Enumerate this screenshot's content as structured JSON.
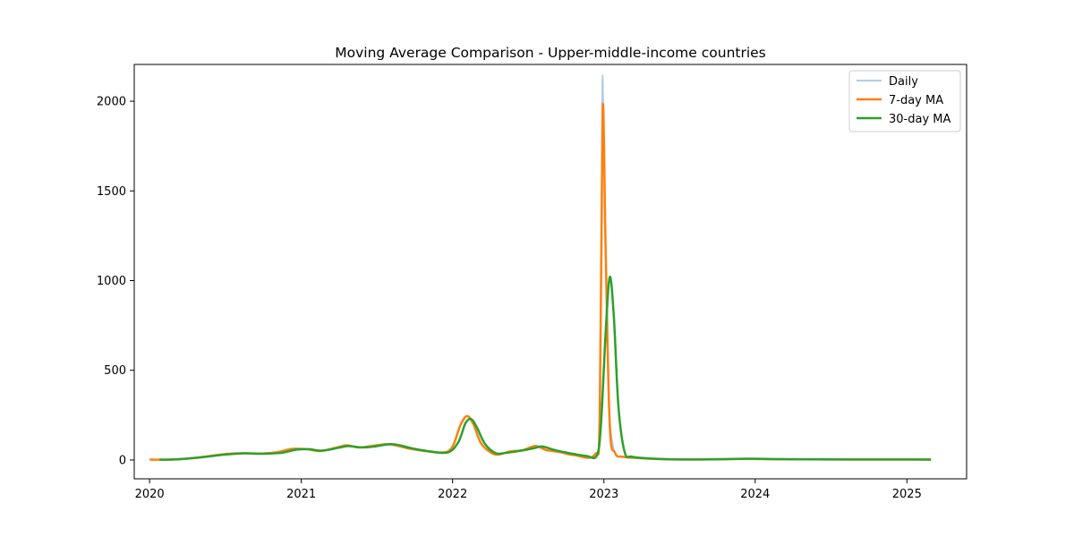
{
  "chart_data": {
    "type": "line",
    "title": "Moving Average Comparison - Upper-middle-income countries",
    "xlabel": "",
    "ylabel": "",
    "x_axis": {
      "type": "date",
      "range": [
        "2019-11-25",
        "2025-05-25"
      ],
      "ticks": [
        "2020",
        "2021",
        "2022",
        "2023",
        "2024",
        "2025"
      ]
    },
    "y_axis": {
      "range": [
        -105,
        2205
      ],
      "ticks": [
        0,
        500,
        1000,
        1500,
        2000
      ]
    },
    "grid": false,
    "legend": {
      "placement": "top-right",
      "entries": [
        "Daily",
        "7-day MA",
        "30-day MA"
      ]
    },
    "series": [
      {
        "name": "Daily",
        "color": "#aecde6",
        "points": [
          [
            "2020-01-15",
            2
          ],
          [
            "2020-03-01",
            3
          ],
          [
            "2020-05-01",
            15
          ],
          [
            "2020-07-01",
            33
          ],
          [
            "2020-08-15",
            38
          ],
          [
            "2020-09-15",
            35
          ],
          [
            "2020-11-01",
            42
          ],
          [
            "2020-12-10",
            62
          ],
          [
            "2021-01-15",
            60
          ],
          [
            "2021-02-15",
            50
          ],
          [
            "2021-04-01",
            72
          ],
          [
            "2021-04-20",
            82
          ],
          [
            "2021-05-20",
            70
          ],
          [
            "2021-06-20",
            78
          ],
          [
            "2021-08-01",
            90
          ],
          [
            "2021-09-15",
            65
          ],
          [
            "2021-10-20",
            52
          ],
          [
            "2021-12-10",
            42
          ],
          [
            "2022-01-01",
            80
          ],
          [
            "2022-01-20",
            200
          ],
          [
            "2022-02-05",
            245
          ],
          [
            "2022-02-20",
            200
          ],
          [
            "2022-03-10",
            95
          ],
          [
            "2022-04-01",
            45
          ],
          [
            "2022-04-20",
            30
          ],
          [
            "2022-05-20",
            48
          ],
          [
            "2022-06-20",
            55
          ],
          [
            "2022-07-20",
            80
          ],
          [
            "2022-08-15",
            55
          ],
          [
            "2022-09-15",
            45
          ],
          [
            "2022-10-20",
            28
          ],
          [
            "2022-12-10",
            30
          ],
          [
            "2022-12-22",
            300
          ],
          [
            "2022-12-28",
            2100
          ],
          [
            "2023-01-03",
            1500
          ],
          [
            "2023-01-12",
            400
          ],
          [
            "2023-01-25",
            60
          ],
          [
            "2023-02-15",
            20
          ],
          [
            "2023-04-01",
            10
          ],
          [
            "2023-06-01",
            4
          ],
          [
            "2023-09-01",
            3
          ],
          [
            "2023-12-01",
            6
          ],
          [
            "2024-03-01",
            4
          ],
          [
            "2024-08-01",
            3
          ],
          [
            "2024-12-01",
            3
          ],
          [
            "2025-02-28",
            2
          ]
        ]
      },
      {
        "name": "7-day MA",
        "color": "#ff7f0e",
        "points": [
          [
            "2020-01-01",
            2
          ],
          [
            "2020-03-01",
            3
          ],
          [
            "2020-05-01",
            15
          ],
          [
            "2020-07-01",
            33
          ],
          [
            "2020-08-15",
            38
          ],
          [
            "2020-09-15",
            35
          ],
          [
            "2020-11-01",
            42
          ],
          [
            "2020-12-10",
            62
          ],
          [
            "2021-01-15",
            60
          ],
          [
            "2021-02-15",
            50
          ],
          [
            "2021-04-01",
            72
          ],
          [
            "2021-04-20",
            82
          ],
          [
            "2021-05-20",
            70
          ],
          [
            "2021-06-20",
            78
          ],
          [
            "2021-08-01",
            88
          ],
          [
            "2021-09-15",
            65
          ],
          [
            "2021-10-20",
            52
          ],
          [
            "2021-12-10",
            42
          ],
          [
            "2022-01-01",
            75
          ],
          [
            "2022-01-20",
            195
          ],
          [
            "2022-02-05",
            245
          ],
          [
            "2022-02-20",
            200
          ],
          [
            "2022-03-10",
            95
          ],
          [
            "2022-04-01",
            45
          ],
          [
            "2022-04-20",
            30
          ],
          [
            "2022-05-20",
            48
          ],
          [
            "2022-06-20",
            55
          ],
          [
            "2022-07-20",
            78
          ],
          [
            "2022-08-15",
            55
          ],
          [
            "2022-09-15",
            45
          ],
          [
            "2022-10-20",
            28
          ],
          [
            "2022-12-10",
            30
          ],
          [
            "2022-12-22",
            250
          ],
          [
            "2022-12-29",
            1960
          ],
          [
            "2023-01-05",
            1200
          ],
          [
            "2023-01-15",
            200
          ],
          [
            "2023-01-28",
            40
          ],
          [
            "2023-02-15",
            18
          ],
          [
            "2023-04-01",
            10
          ],
          [
            "2023-06-01",
            4
          ],
          [
            "2023-09-01",
            3
          ],
          [
            "2023-12-01",
            6
          ],
          [
            "2024-03-01",
            4
          ],
          [
            "2024-08-01",
            3
          ],
          [
            "2024-12-01",
            3
          ],
          [
            "2025-02-28",
            2
          ]
        ]
      },
      {
        "name": "30-day MA",
        "color": "#2ca02c",
        "points": [
          [
            "2020-01-25",
            2
          ],
          [
            "2020-03-01",
            3
          ],
          [
            "2020-05-01",
            14
          ],
          [
            "2020-07-01",
            30
          ],
          [
            "2020-08-20",
            37
          ],
          [
            "2020-10-01",
            35
          ],
          [
            "2020-11-15",
            40
          ],
          [
            "2020-12-20",
            58
          ],
          [
            "2021-01-20",
            60
          ],
          [
            "2021-02-20",
            52
          ],
          [
            "2021-04-01",
            68
          ],
          [
            "2021-04-25",
            78
          ],
          [
            "2021-05-25",
            70
          ],
          [
            "2021-06-25",
            75
          ],
          [
            "2021-08-10",
            88
          ],
          [
            "2021-09-25",
            65
          ],
          [
            "2021-11-01",
            50
          ],
          [
            "2021-12-20",
            42
          ],
          [
            "2022-01-15",
            100
          ],
          [
            "2022-02-01",
            205
          ],
          [
            "2022-02-15",
            228
          ],
          [
            "2022-03-01",
            180
          ],
          [
            "2022-03-20",
            90
          ],
          [
            "2022-04-15",
            38
          ],
          [
            "2022-05-10",
            40
          ],
          [
            "2022-06-10",
            50
          ],
          [
            "2022-07-15",
            65
          ],
          [
            "2022-08-05",
            75
          ],
          [
            "2022-09-05",
            55
          ],
          [
            "2022-10-10",
            38
          ],
          [
            "2022-11-20",
            22
          ],
          [
            "2022-12-15",
            25
          ],
          [
            "2022-12-25",
            200
          ],
          [
            "2023-01-05",
            700
          ],
          [
            "2023-01-15",
            1020
          ],
          [
            "2023-01-25",
            800
          ],
          [
            "2023-02-05",
            300
          ],
          [
            "2023-02-20",
            45
          ],
          [
            "2023-03-10",
            18
          ],
          [
            "2023-05-01",
            7
          ],
          [
            "2023-07-01",
            3
          ],
          [
            "2023-10-01",
            4
          ],
          [
            "2023-12-15",
            7
          ],
          [
            "2024-03-01",
            5
          ],
          [
            "2024-08-01",
            3
          ],
          [
            "2024-12-01",
            3
          ],
          [
            "2025-02-28",
            2
          ]
        ]
      }
    ]
  }
}
